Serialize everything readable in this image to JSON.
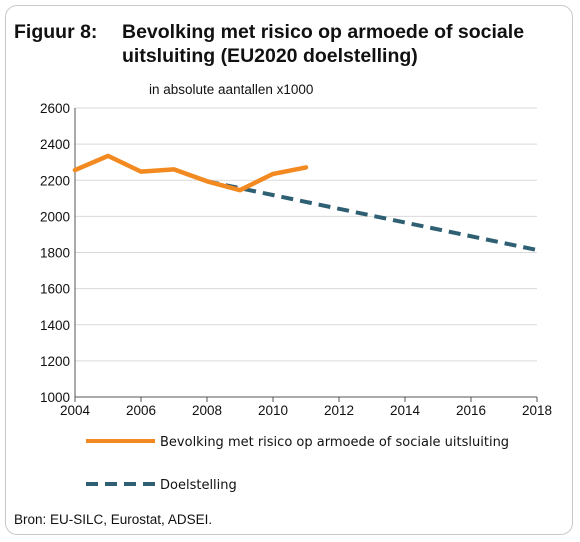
{
  "figure": {
    "number": "Figuur 8:",
    "title": "Bevolking met risico op armoede of sociale uitsluiting (EU2020 doelstelling)",
    "subtitle": "in absolute aantallen x1000"
  },
  "source": "Bron: EU-SILC, Eurostat, ADSEI.",
  "colors": {
    "orange": "#f28a21",
    "teal": "#2f5f73",
    "grid": "#d9d9d9"
  },
  "chart_data": {
    "type": "line",
    "xlim": [
      2004,
      2018
    ],
    "ylim": [
      1000,
      2600
    ],
    "x_ticks": [
      "2004",
      "2006",
      "2008",
      "2010",
      "2012",
      "2014",
      "2016",
      "2018"
    ],
    "y_ticks": [
      "1000",
      "1200",
      "1400",
      "1600",
      "1800",
      "2000",
      "2200",
      "2400",
      "2600"
    ],
    "grid": "horizontal",
    "legend_position": "bottom",
    "series": [
      {
        "name": "Bevolking met risico op armoede of sociale uitsluiting",
        "color": "#f28a21",
        "style": "solid",
        "x": [
          2004,
          2005,
          2006,
          2007,
          2008,
          2009,
          2010,
          2011
        ],
        "y": [
          2256,
          2335,
          2248,
          2260,
          2194,
          2145,
          2235,
          2271
        ]
      },
      {
        "name": "Doelstelling",
        "color": "#2f5f73",
        "style": "dashed",
        "x": [
          2008,
          2018
        ],
        "y": [
          2194,
          1814
        ]
      }
    ]
  }
}
